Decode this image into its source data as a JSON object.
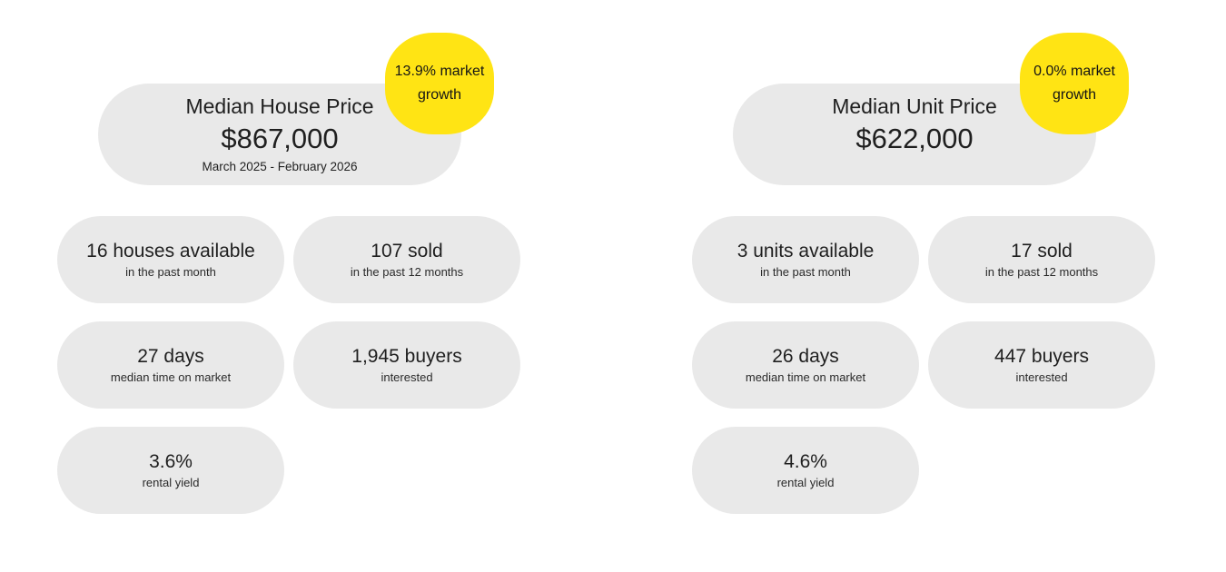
{
  "colors": {
    "card_background": "#e9e9e9",
    "badge_background": "#ffe414",
    "text": "#1f1f1f",
    "page_background": "#ffffff"
  },
  "panels": [
    {
      "id": "houses",
      "badge": {
        "line1": "13.9% market",
        "line2": "growth"
      },
      "header": {
        "title": "Median House Price",
        "price": "$867,000",
        "period": "March 2025 - February 2026"
      },
      "stats": [
        {
          "value": "16 houses available",
          "label": "in the past month"
        },
        {
          "value": "107 sold",
          "label": "in the past 12 months"
        },
        {
          "value": "27 days",
          "label": "median time on market"
        },
        {
          "value": "1,945 buyers",
          "label": "interested"
        },
        {
          "value": "3.6%",
          "label": "rental yield"
        }
      ]
    },
    {
      "id": "units",
      "badge": {
        "line1": "0.0% market",
        "line2": "growth"
      },
      "header": {
        "title": "Median Unit Price",
        "price": "$622,000",
        "period": ""
      },
      "stats": [
        {
          "value": "3 units available",
          "label": "in the past month"
        },
        {
          "value": "17 sold",
          "label": "in the past 12 months"
        },
        {
          "value": "26 days",
          "label": "median time on market"
        },
        {
          "value": "447 buyers",
          "label": "interested"
        },
        {
          "value": "4.6%",
          "label": "rental yield"
        }
      ]
    }
  ],
  "chart_data": {
    "type": "table",
    "title": "Suburb property market statistics",
    "groups": [
      {
        "name": "Houses",
        "median_price": 867000,
        "median_price_display": "$867,000",
        "period": "March 2025 - February 2026",
        "market_growth_pct": 13.9,
        "available_in_past_month": 16,
        "sold_in_past_12_months": 107,
        "median_days_on_market": 27,
        "buyers_interested": 1945,
        "rental_yield_pct": 3.6
      },
      {
        "name": "Units",
        "median_price": 622000,
        "median_price_display": "$622,000",
        "period": "",
        "market_growth_pct": 0.0,
        "available_in_past_month": 3,
        "sold_in_past_12_months": 17,
        "median_days_on_market": 26,
        "buyers_interested": 447,
        "rental_yield_pct": 4.6
      }
    ]
  }
}
